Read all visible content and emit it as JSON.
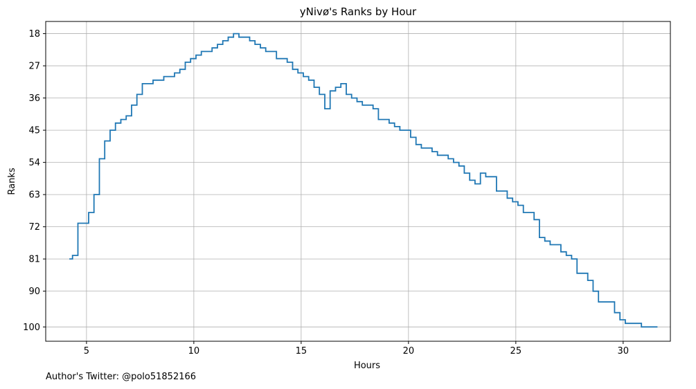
{
  "footnote": "Author's Twitter: @polo51852166",
  "chart_data": {
    "type": "line",
    "step": true,
    "title": "yNivø's Ranks by Hour",
    "xlabel": "Hours",
    "ylabel": "Ranks",
    "xlim": [
      3.1,
      32.2
    ],
    "ylim": [
      104,
      14.6
    ],
    "y_inverted": true,
    "xticks": [
      5,
      10,
      15,
      20,
      25,
      30
    ],
    "yticks": [
      18,
      27,
      36,
      45,
      54,
      63,
      72,
      81,
      90,
      100
    ],
    "grid": true,
    "line_color": "#1f77b4",
    "series": [
      {
        "x": [
          4.2,
          4.35,
          4.6,
          4.85,
          5.1,
          5.35,
          5.6,
          5.85,
          6.1,
          6.35,
          6.6,
          6.85,
          7.1,
          7.35,
          7.6,
          7.85,
          8.1,
          8.35,
          8.6,
          8.85,
          9.1,
          9.35,
          9.6,
          9.85,
          10.1,
          10.35,
          10.6,
          10.85,
          11.1,
          11.35,
          11.6,
          11.85,
          12.1,
          12.35,
          12.6,
          12.85,
          13.1,
          13.35,
          13.6,
          13.85,
          14.1,
          14.35,
          14.6,
          14.85,
          15.1,
          15.35,
          15.6,
          15.85,
          16.1,
          16.35,
          16.6,
          16.85,
          17.1,
          17.35,
          17.6,
          17.85,
          18.1,
          18.35,
          18.6,
          18.85,
          19.1,
          19.35,
          19.6,
          19.85,
          20.1,
          20.35,
          20.6,
          20.85,
          21.1,
          21.35,
          21.6,
          21.85,
          22.1,
          22.35,
          22.6,
          22.85,
          23.1,
          23.35,
          23.6,
          23.85,
          24.1,
          24.35,
          24.6,
          24.85,
          25.1,
          25.35,
          25.6,
          25.85,
          26.1,
          26.35,
          26.6,
          26.85,
          27.1,
          27.35,
          27.6,
          27.85,
          28.1,
          28.35,
          28.6,
          28.85,
          29.1,
          29.35,
          29.6,
          29.85,
          30.1,
          30.35,
          30.6,
          30.85,
          31.1,
          31.35,
          31.6
        ],
        "y": [
          81,
          80,
          71,
          71,
          68,
          63,
          53,
          48,
          45,
          43,
          42,
          41,
          38,
          35,
          32,
          32,
          31,
          31,
          30,
          30,
          29,
          28,
          26,
          25,
          24,
          23,
          23,
          22,
          21,
          20,
          19,
          18,
          19,
          19,
          20,
          21,
          22,
          23,
          23,
          25,
          25,
          26,
          28,
          29,
          30,
          31,
          33,
          35,
          39,
          34,
          33,
          32,
          35,
          36,
          37,
          38,
          38,
          39,
          42,
          42,
          43,
          44,
          45,
          45,
          47,
          49,
          50,
          50,
          51,
          52,
          52,
          53,
          54,
          55,
          57,
          59,
          60,
          57,
          58,
          58,
          62,
          62,
          64,
          65,
          66,
          68,
          68,
          70,
          75,
          76,
          77,
          77,
          79,
          80,
          81,
          85,
          85,
          87,
          90,
          93,
          93,
          93,
          96,
          98,
          99,
          99,
          99,
          100,
          100,
          100,
          100
        ]
      }
    ]
  }
}
